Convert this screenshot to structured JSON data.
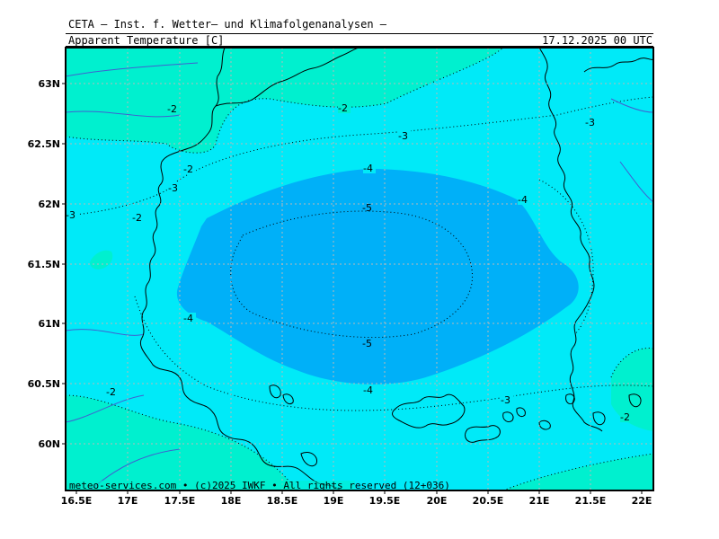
{
  "header": {
    "title": "CETA — Inst. f. Wetter— und Klimafolgenanalysen —",
    "parameter": "Apparent_Temperature_[C]",
    "valid_time": "17.12.2025 00 UTC"
  },
  "map": {
    "lon_ticks": [
      "16.5E",
      "17E",
      "17.5E",
      "18E",
      "18.5E",
      "19E",
      "19.5E",
      "20E",
      "20.5E",
      "21E",
      "21.5E",
      "22E"
    ],
    "lat_ticks": [
      "63N",
      "62.5N",
      "62N",
      "61.5N",
      "61N",
      "60.5N",
      "60N"
    ],
    "contour_labels": [
      "-2",
      "-2",
      "-2",
      "-2",
      "-2",
      "-2",
      "-3",
      "-3",
      "-3",
      "-3",
      "-3",
      "-4",
      "-4",
      "-4",
      "-4",
      "-5",
      "-5"
    ],
    "colors": {
      "warm_band": "#00f0cf",
      "mid_band": "#00eaf8",
      "cold_core": "#00b0f8",
      "coastline": "#000000",
      "borders": "#4060d0",
      "grid": "#b8b8b8"
    }
  },
  "footer": {
    "credit": "meteo-services.com • (c)2025 IWKF • All rights reserved (12+036)"
  }
}
